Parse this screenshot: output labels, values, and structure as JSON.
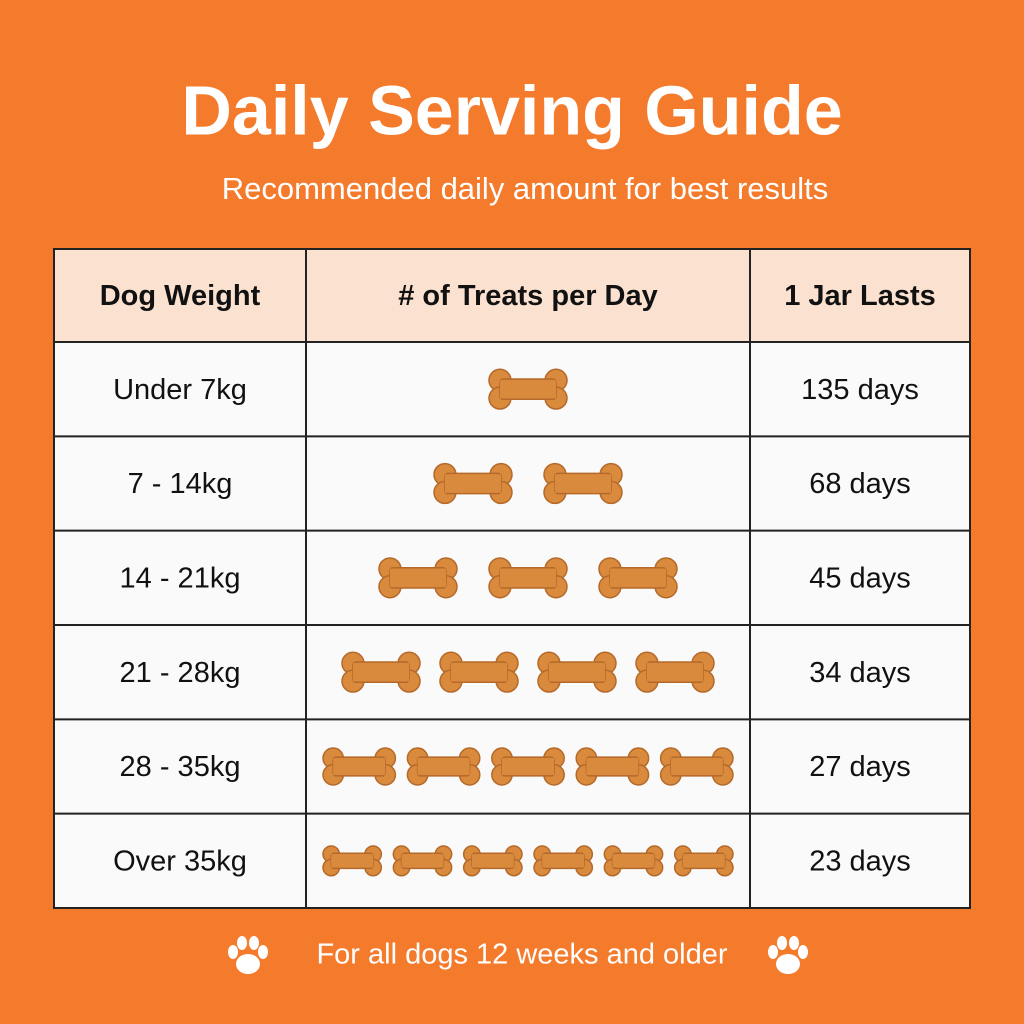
{
  "header": {
    "title": "Daily Serving Guide",
    "subtitle": "Recommended daily amount for best results"
  },
  "table": {
    "columns": [
      "Dog Weight",
      "# of Treats per Day",
      "1 Jar Lasts"
    ],
    "rows": [
      {
        "weight": "Under 7kg",
        "treats": 1,
        "lasts": "135 days"
      },
      {
        "weight": "7 - 14kg",
        "treats": 2,
        "lasts": "68 days"
      },
      {
        "weight": "14 - 21kg",
        "treats": 3,
        "lasts": "45 days"
      },
      {
        "weight": "21 - 28kg",
        "treats": 4,
        "lasts": "34 days"
      },
      {
        "weight": "28 - 35kg",
        "treats": 5,
        "lasts": "27 days"
      },
      {
        "weight": "Over 35kg",
        "treats": 6,
        "lasts": "23 days"
      }
    ]
  },
  "footer": {
    "note": "For all dogs 12 weeks and older"
  }
}
